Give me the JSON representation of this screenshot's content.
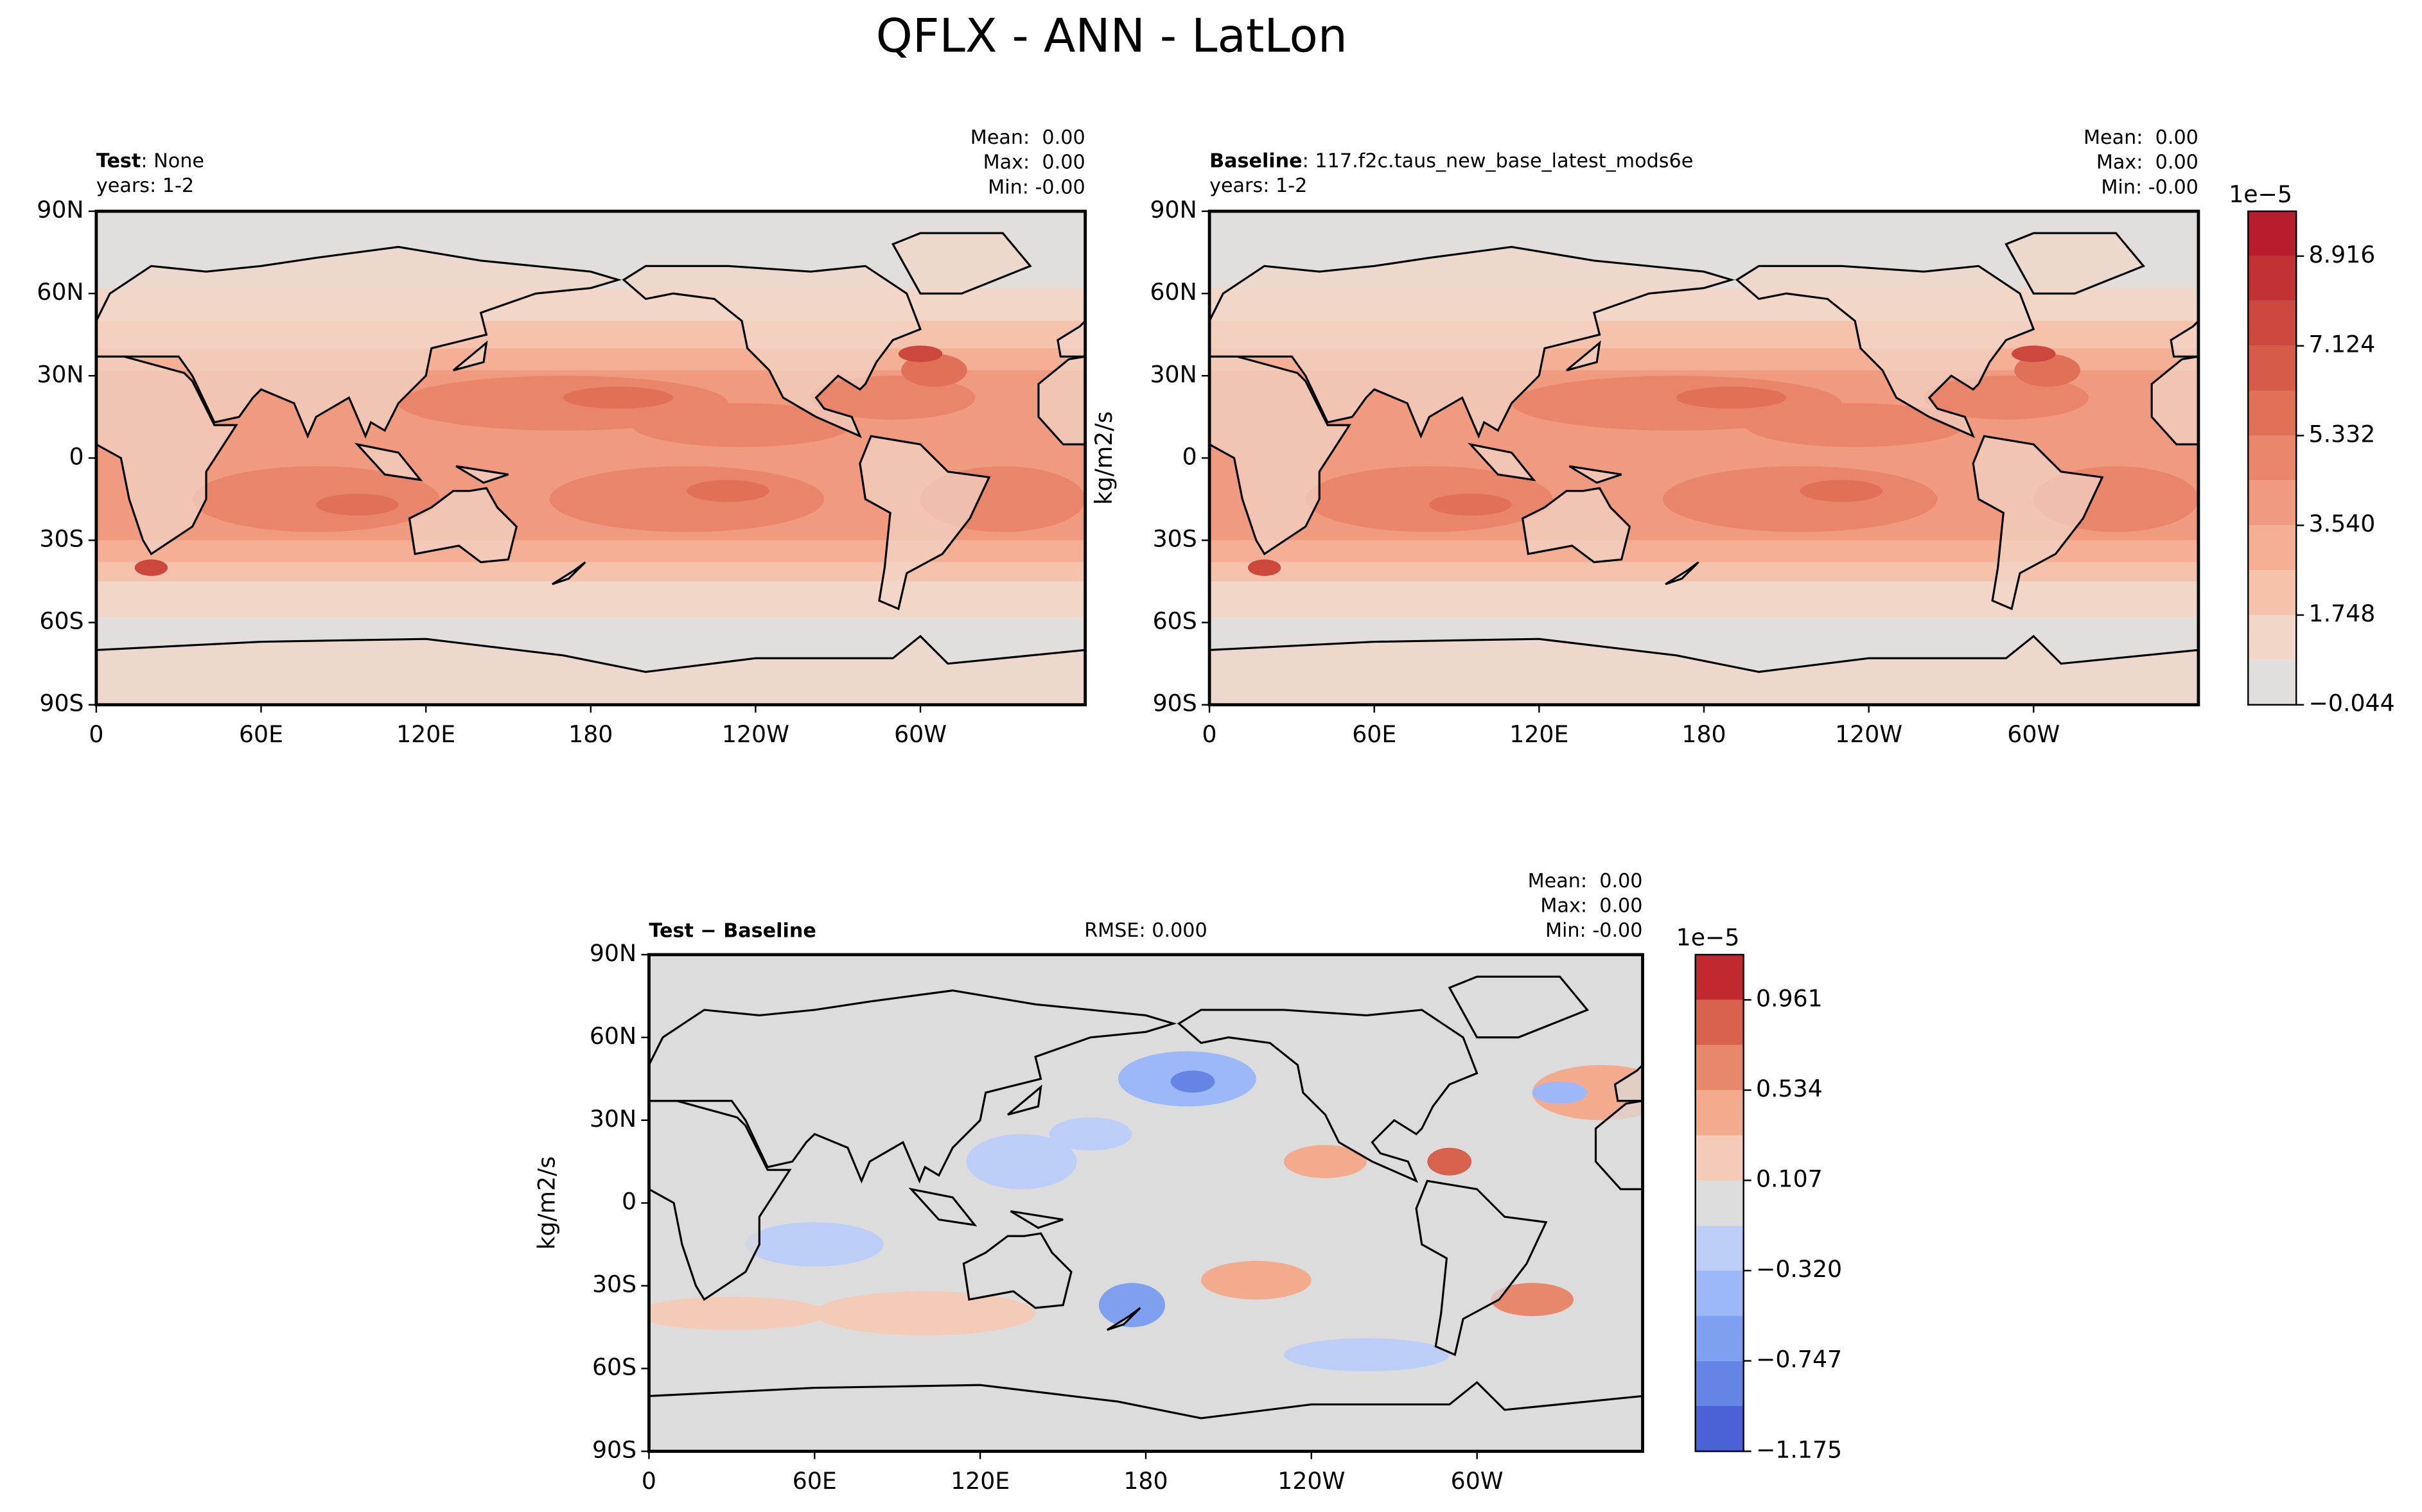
{
  "suptitle": "QFLX - ANN - LatLon",
  "chart_data": [
    {
      "type": "map",
      "title": "Test",
      "subtitle": ": None",
      "years": "years: 1-2",
      "stats": [
        "Mean:  0.00",
        "Max:  0.00",
        "Min: -0.00"
      ],
      "xlim": [
        0,
        360
      ],
      "ylim": [
        -90,
        90
      ],
      "xticks": [
        0,
        {
          "value": 60,
          "label": "60E"
        },
        {
          "value": 120,
          "label": "120E"
        },
        180,
        {
          "value": 240,
          "label": "120W"
        },
        {
          "value": 300,
          "label": "60W"
        }
      ],
      "yticks": [
        {
          "value": -90,
          "label": "90S"
        },
        {
          "value": -60,
          "label": "60S"
        },
        {
          "value": -30,
          "label": "30S"
        },
        0,
        {
          "value": 30,
          "label": "30N"
        },
        {
          "value": 60,
          "label": "60N"
        },
        {
          "value": 90,
          "label": "90N"
        }
      ]
    },
    {
      "type": "map",
      "title": "Baseline",
      "subtitle": ": 117.f2c.taus_new_base_latest_mods6e",
      "years": "years: 1-2",
      "stats": [
        "Mean:  0.00",
        "Max:  0.00",
        "Min: -0.00"
      ],
      "ylabel": "kg/m2/s",
      "xlim": [
        0,
        360
      ],
      "ylim": [
        -90,
        90
      ],
      "xticks": [
        0,
        {
          "value": 60,
          "label": "60E"
        },
        {
          "value": 120,
          "label": "120E"
        },
        180,
        {
          "value": 240,
          "label": "120W"
        },
        {
          "value": 300,
          "label": "60W"
        }
      ],
      "yticks": [
        {
          "value": -90,
          "label": "90S"
        },
        {
          "value": -60,
          "label": "60S"
        },
        {
          "value": -30,
          "label": "30S"
        },
        0,
        {
          "value": 30,
          "label": "30N"
        },
        {
          "value": 60,
          "label": "60N"
        },
        {
          "value": 90,
          "label": "90N"
        }
      ],
      "colorbar": {
        "offset_label": "1e−5",
        "levels": [
          -0.044,
          0.852,
          1.748,
          2.644,
          3.54,
          4.436,
          5.332,
          6.228,
          7.124,
          8.02,
          8.916,
          9.812
        ],
        "colors": [
          "#e2dedb",
          "#f2d6c8",
          "#f5c3ab",
          "#f4af95",
          "#f09b7f",
          "#e8856b",
          "#e07058",
          "#d65b48",
          "#cc473c",
          "#c23232",
          "#b71d2c"
        ],
        "ticks": [
          {
            "value": -0.044,
            "label": "−0.044"
          },
          1.748,
          {
            "value": 3.54,
            "label": "3.540"
          },
          5.332,
          7.124,
          8.916
        ]
      }
    },
    {
      "type": "map",
      "title": "Test − Baseline",
      "rmse": "RMSE: 0.000",
      "stats": [
        "Mean:  0.00",
        "Max:  0.00",
        "Min: -0.00"
      ],
      "ylabel": "kg/m2/s",
      "xlim": [
        0,
        360
      ],
      "ylim": [
        -90,
        90
      ],
      "xticks": [
        0,
        {
          "value": 60,
          "label": "60E"
        },
        {
          "value": 120,
          "label": "120E"
        },
        180,
        {
          "value": 240,
          "label": "120W"
        },
        {
          "value": 300,
          "label": "60W"
        }
      ],
      "yticks": [
        {
          "value": -90,
          "label": "90S"
        },
        {
          "value": -60,
          "label": "60S"
        },
        {
          "value": -30,
          "label": "30S"
        },
        0,
        {
          "value": 30,
          "label": "30N"
        },
        {
          "value": 60,
          "label": "60N"
        },
        {
          "value": 90,
          "label": "90N"
        }
      ],
      "colorbar": {
        "offset_label": "1e−5",
        "levels": [
          -1.175,
          -0.961,
          -0.748,
          -0.534,
          -0.32,
          -0.107,
          0.107,
          0.32,
          0.534,
          0.748,
          0.961,
          1.175
        ],
        "colors": [
          "#4a62d5",
          "#6585e4",
          "#7f9ff0",
          "#9db8f8",
          "#bccdf7",
          "#dcdcdc",
          "#f3cbb6",
          "#f2ab8d",
          "#e7886c",
          "#d6614d",
          "#c02a2e"
        ],
        "ticks": [
          {
            "value": -1.175,
            "label": "−1.175"
          },
          {
            "value": -0.747,
            "label": "−0.747"
          },
          {
            "value": -0.32,
            "label": "−0.320"
          },
          0.107,
          0.534,
          0.961
        ]
      }
    }
  ]
}
